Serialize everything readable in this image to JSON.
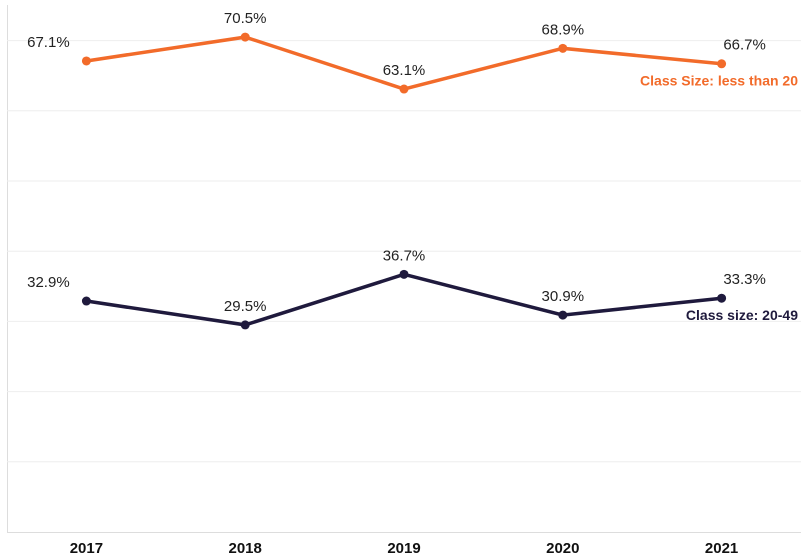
{
  "chart_data": {
    "type": "line",
    "categories": [
      "2017",
      "2018",
      "2019",
      "2020",
      "2021"
    ],
    "series": [
      {
        "name": "Class Size: less than 20",
        "color": "#f26b2a",
        "values": [
          67.1,
          70.5,
          63.1,
          68.9,
          66.7
        ],
        "value_labels": [
          "67.1%",
          "70.5%",
          "63.1%",
          "68.9%",
          "66.7%"
        ]
      },
      {
        "name": "Class size: 20-49",
        "color": "#1f1a3d",
        "values": [
          32.9,
          29.5,
          36.7,
          30.9,
          33.3
        ],
        "value_labels": [
          "32.9%",
          "29.5%",
          "36.7%",
          "30.9%",
          "33.3%"
        ]
      }
    ],
    "ylim": [
      0,
      75
    ],
    "yticks": [
      10,
      20,
      30,
      40,
      50,
      60,
      70
    ],
    "grid": true
  }
}
